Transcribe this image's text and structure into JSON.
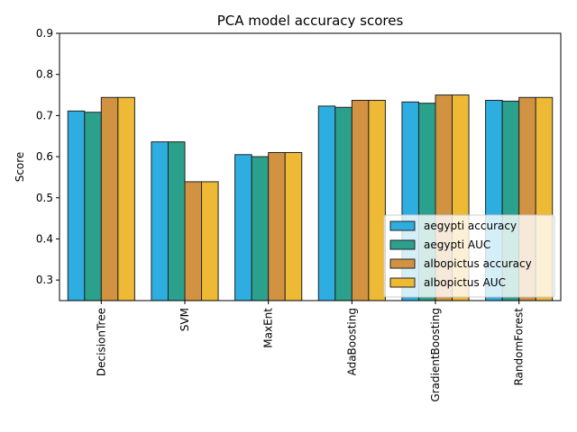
{
  "chart_data": {
    "type": "bar",
    "title": "PCA model accuracy scores",
    "xlabel": "",
    "ylabel": "Score",
    "ylim": [
      0.25,
      0.9
    ],
    "yticks": [
      "0.3",
      "0.4",
      "0.5",
      "0.6",
      "0.7",
      "0.8",
      "0.9"
    ],
    "categories": [
      "DecisionTree",
      "SVM",
      "MaxEnt",
      "AdaBoosting",
      "GradientBoosting",
      "RandomForest"
    ],
    "series": [
      {
        "name": "aegypti accuracy",
        "color": "#2eaee0",
        "values": [
          0.711,
          0.636,
          0.605,
          0.723,
          0.733,
          0.737
        ]
      },
      {
        "name": "aegypti AUC",
        "color": "#2ba08c",
        "values": [
          0.708,
          0.636,
          0.6,
          0.72,
          0.73,
          0.735
        ]
      },
      {
        "name": "albopictus accuracy",
        "color": "#d19342",
        "values": [
          0.744,
          0.539,
          0.61,
          0.737,
          0.75,
          0.744
        ]
      },
      {
        "name": "albopictus AUC",
        "color": "#eeba35",
        "values": [
          0.744,
          0.539,
          0.61,
          0.737,
          0.75,
          0.744
        ]
      }
    ],
    "grid": false,
    "legend_position": "lower-right"
  }
}
